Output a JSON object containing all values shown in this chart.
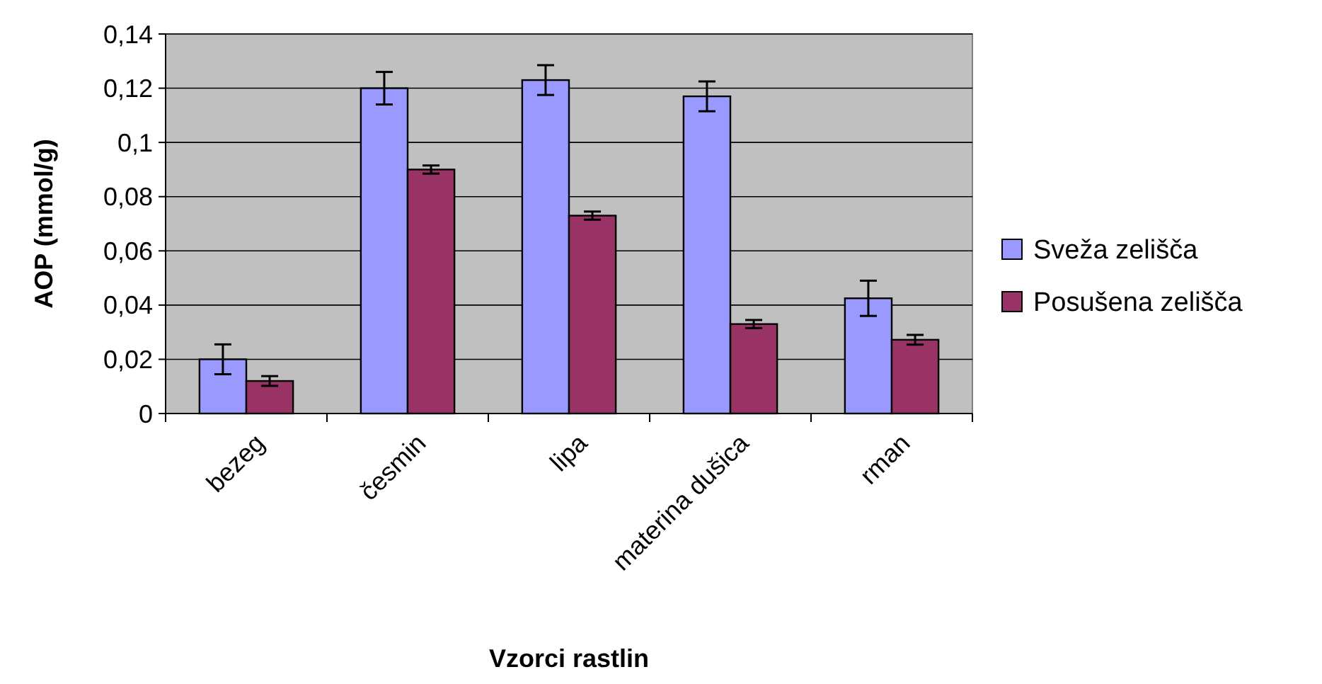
{
  "chart_data": {
    "type": "bar",
    "xlabel": "Vzorci rastlin",
    "ylabel": "AOP (mmol/g)",
    "categories": [
      "bezeg",
      "česmin",
      "lipa",
      "materina dušica",
      "rman"
    ],
    "series": [
      {
        "name": "Sveža zelišča",
        "color": "#9999ff",
        "values": [
          0.02,
          0.12,
          0.123,
          0.117,
          0.0425
        ],
        "errors": [
          0.0055,
          0.006,
          0.0055,
          0.0055,
          0.0065
        ]
      },
      {
        "name": "Posušena zelišča",
        "color": "#993366",
        "values": [
          0.012,
          0.09,
          0.073,
          0.033,
          0.0272
        ],
        "errors": [
          0.0018,
          0.0015,
          0.0015,
          0.0015,
          0.0018
        ]
      }
    ],
    "ylim": [
      0,
      0.14
    ],
    "yticks": [
      {
        "value": 0,
        "label": "0"
      },
      {
        "value": 0.02,
        "label": "0,02"
      },
      {
        "value": 0.04,
        "label": "0,04"
      },
      {
        "value": 0.06,
        "label": "0,06"
      },
      {
        "value": 0.08,
        "label": "0,08"
      },
      {
        "value": 0.1,
        "label": "0,1"
      },
      {
        "value": 0.12,
        "label": "0,12"
      },
      {
        "value": 0.14,
        "label": "0,14"
      }
    ],
    "grid": "y",
    "legend": "right"
  }
}
